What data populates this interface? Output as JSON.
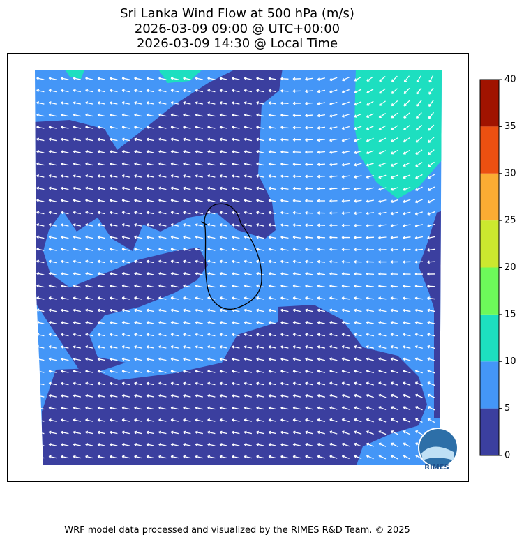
{
  "title": [
    "Sri Lanka Wind Flow at 500 hPa (m/s)",
    "2026-03-09 09:00 @ UTC+00:00",
    "2026-03-09 14:30 @ Local Time"
  ],
  "colorbar": {
    "lim": [
      0,
      40
    ],
    "ticks": [
      0,
      5,
      10,
      15,
      20,
      25,
      30,
      35,
      40
    ],
    "colors": [
      "#3b3f9f",
      "#4496f7",
      "#1ddfc0",
      "#6dfa5a",
      "#cbe82f",
      "#fbac33",
      "#ec5011",
      "#a01300"
    ]
  },
  "logo": "RIMES",
  "footer": "WRF model data processed and visualized by the RIMES R&D Team. © 2025"
}
